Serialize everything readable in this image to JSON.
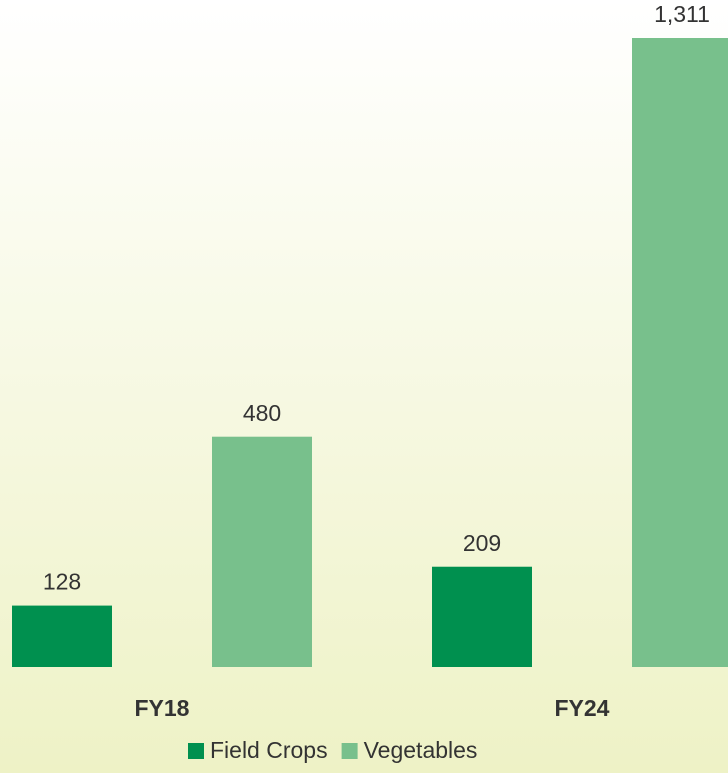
{
  "chart_data": {
    "type": "bar",
    "categories": [
      "FY18",
      "FY24"
    ],
    "series": [
      {
        "name": "Field Crops",
        "color": "#00904f",
        "values": [
          128,
          209
        ],
        "value_labels": [
          "128",
          "209"
        ]
      },
      {
        "name": "Vegetables",
        "color": "#78c08c",
        "values": [
          480,
          1311
        ],
        "value_labels": [
          "480",
          "1,311"
        ]
      }
    ]
  }
}
